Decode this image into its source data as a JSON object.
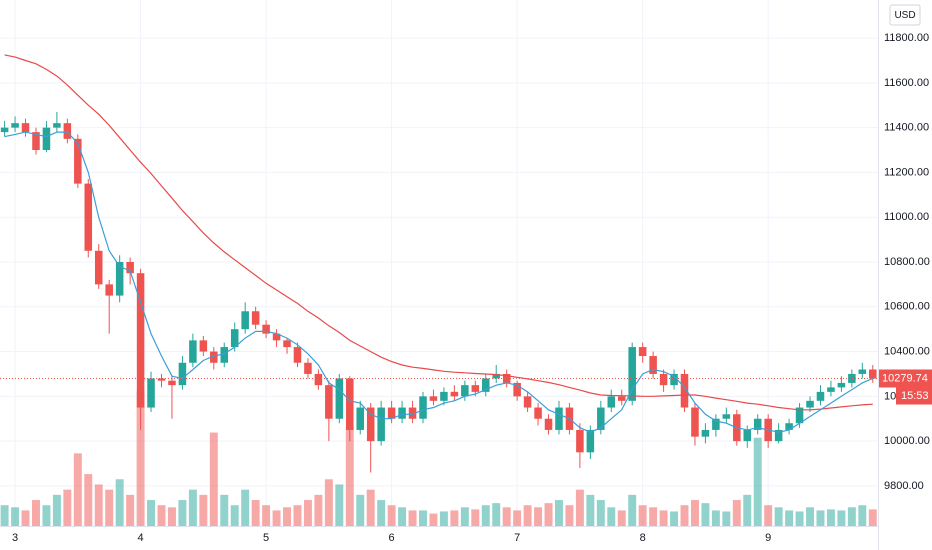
{
  "chart_data": {
    "type": "candlestick",
    "categories": [
      null,
      "3",
      null,
      null,
      null,
      null,
      null,
      null,
      null,
      null,
      null,
      null,
      null,
      "4",
      null,
      null,
      null,
      null,
      null,
      null,
      null,
      null,
      null,
      null,
      null,
      "5",
      null,
      null,
      null,
      null,
      null,
      null,
      null,
      null,
      null,
      null,
      null,
      "6",
      null,
      null,
      null,
      null,
      null,
      null,
      null,
      null,
      null,
      null,
      null,
      "7",
      null,
      null,
      null,
      null,
      null,
      null,
      null,
      null,
      null,
      null,
      null,
      "8",
      null,
      null,
      null,
      null,
      null,
      null,
      null,
      null,
      null,
      null,
      null,
      "9",
      null,
      null,
      null,
      null,
      null,
      null,
      null,
      null,
      null,
      null
    ],
    "open": [
      11380,
      11400,
      11420,
      11380,
      11300,
      11400,
      11420,
      11350,
      11150,
      10850,
      10700,
      10650,
      10800,
      10750,
      10150,
      10280,
      10270,
      10250,
      10350,
      10450,
      10400,
      10350,
      10420,
      10500,
      10580,
      10520,
      10480,
      10450,
      10420,
      10350,
      10300,
      10250,
      10100,
      10280,
      10050,
      10150,
      10000,
      10150,
      10100,
      10150,
      10100,
      10200,
      10180,
      10220,
      10200,
      10250,
      10220,
      10280,
      10300,
      10260,
      10200,
      10150,
      10100,
      10050,
      10150,
      10050,
      9950,
      10050,
      10150,
      10200,
      10180,
      10420,
      10380,
      10300,
      10250,
      10300,
      10150,
      10020,
      10050,
      10100,
      10120,
      10000,
      10050,
      10100,
      10000,
      10050,
      10080,
      10150,
      10180,
      10220,
      10240,
      10260,
      10300,
      10320
    ],
    "high": [
      11430,
      11450,
      11440,
      11400,
      11430,
      11470,
      11440,
      11370,
      11170,
      10880,
      10720,
      10830,
      10820,
      10770,
      10310,
      10300,
      10290,
      10380,
      10480,
      10470,
      10420,
      10440,
      10530,
      10620,
      10600,
      10540,
      10500,
      10460,
      10440,
      10370,
      10320,
      10270,
      10300,
      10290,
      10180,
      10170,
      10180,
      10180,
      10180,
      10180,
      10220,
      10230,
      10240,
      10250,
      10270,
      10270,
      10300,
      10340,
      10320,
      10270,
      10220,
      10170,
      10120,
      10180,
      10170,
      10080,
      10070,
      10180,
      10230,
      10230,
      10440,
      10440,
      10400,
      10320,
      10320,
      10320,
      10170,
      10080,
      10120,
      10150,
      10140,
      10070,
      10120,
      10120,
      10080,
      10100,
      10170,
      10200,
      10250,
      10270,
      10290,
      10320,
      10350,
      10340
    ],
    "low": [
      11360,
      11380,
      11360,
      11280,
      11290,
      11380,
      11330,
      11130,
      10820,
      10680,
      10480,
      10620,
      10700,
      10050,
      10130,
      10240,
      10100,
      10230,
      10330,
      10380,
      10320,
      10330,
      10400,
      10480,
      10500,
      10460,
      10420,
      10390,
      10330,
      10280,
      10230,
      10000,
      10080,
      10000,
      10030,
      9860,
      9980,
      10080,
      10080,
      10080,
      10080,
      10160,
      10160,
      10180,
      10180,
      10200,
      10200,
      10260,
      10240,
      10180,
      10130,
      10070,
      10030,
      10030,
      10030,
      9880,
      9920,
      10030,
      10130,
      10160,
      10160,
      10350,
      10280,
      10220,
      10230,
      10130,
      9980,
      9990,
      10020,
      10080,
      9980,
      9970,
      10030,
      9970,
      9990,
      10030,
      10060,
      10130,
      10160,
      10200,
      10220,
      10240,
      10280,
      10260
    ],
    "close": [
      11400,
      11420,
      11380,
      11300,
      11400,
      11420,
      11350,
      11150,
      10850,
      10700,
      10650,
      10800,
      10750,
      10150,
      10280,
      10270,
      10250,
      10350,
      10450,
      10400,
      10350,
      10420,
      10500,
      10580,
      10520,
      10480,
      10450,
      10420,
      10350,
      10300,
      10250,
      10100,
      10280,
      10050,
      10150,
      10000,
      10150,
      10100,
      10150,
      10100,
      10200,
      10180,
      10220,
      10200,
      10250,
      10220,
      10280,
      10300,
      10260,
      10200,
      10150,
      10100,
      10050,
      10150,
      10050,
      9950,
      10050,
      10150,
      10200,
      10180,
      10420,
      10380,
      10300,
      10250,
      10300,
      10150,
      10020,
      10050,
      10100,
      10120,
      10000,
      10050,
      10100,
      10000,
      10050,
      10080,
      10150,
      10180,
      10220,
      10240,
      10260,
      10300,
      10320,
      10279.74
    ],
    "volume": [
      20,
      18,
      15,
      25,
      20,
      30,
      35,
      70,
      50,
      40,
      35,
      45,
      30,
      130,
      25,
      20,
      18,
      25,
      35,
      30,
      90,
      30,
      20,
      35,
      25,
      20,
      15,
      18,
      20,
      25,
      30,
      45,
      40,
      95,
      30,
      35,
      25,
      20,
      18,
      15,
      15,
      12,
      14,
      15,
      18,
      16,
      20,
      22,
      18,
      15,
      20,
      18,
      22,
      25,
      20,
      35,
      30,
      25,
      18,
      15,
      30,
      20,
      18,
      15,
      14,
      20,
      25,
      22,
      15,
      14,
      25,
      30,
      85,
      20,
      18,
      15,
      14,
      18,
      15,
      16,
      15,
      18,
      20,
      16
    ],
    "ma_fast": {
      "color": "#3a9fd8",
      "values": [
        11360,
        11370,
        11380,
        11370,
        11360,
        11380,
        11380,
        11330,
        11200,
        11000,
        10850,
        10780,
        10760,
        10620,
        10480,
        10380,
        10290,
        10280,
        10320,
        10360,
        10380,
        10390,
        10420,
        10460,
        10490,
        10490,
        10480,
        10460,
        10430,
        10390,
        10340,
        10260,
        10230,
        10180,
        10170,
        10120,
        10100,
        10100,
        10120,
        10120,
        10140,
        10150,
        10170,
        10180,
        10200,
        10210,
        10230,
        10250,
        10260,
        10250,
        10220,
        10180,
        10140,
        10120,
        10100,
        10060,
        10040,
        10060,
        10100,
        10140,
        10230,
        10300,
        10320,
        10310,
        10290,
        10240,
        10170,
        10120,
        10090,
        10080,
        10060,
        10050,
        10060,
        10050,
        10040,
        10050,
        10080,
        10110,
        10140,
        10170,
        10200,
        10230,
        10260,
        10280
      ]
    },
    "ma_slow": {
      "color": "#e84a4a",
      "values": [
        11725,
        11715,
        11700,
        11685,
        11660,
        11630,
        11590,
        11545,
        11500,
        11460,
        11410,
        11355,
        11300,
        11245,
        11195,
        11140,
        11085,
        11030,
        10980,
        10930,
        10885,
        10845,
        10810,
        10775,
        10740,
        10705,
        10675,
        10645,
        10615,
        10580,
        10550,
        10515,
        10485,
        10450,
        10425,
        10400,
        10375,
        10355,
        10340,
        10330,
        10325,
        10318,
        10312,
        10308,
        10305,
        10302,
        10300,
        10297,
        10292,
        10285,
        10278,
        10270,
        10262,
        10252,
        10240,
        10228,
        10215,
        10206,
        10204,
        10203,
        10202,
        10200,
        10200,
        10202,
        10204,
        10206,
        10206,
        10200,
        10192,
        10185,
        10178,
        10170,
        10165,
        10158,
        10150,
        10145,
        10140,
        10140,
        10143,
        10148,
        10153,
        10158,
        10162,
        10165
      ]
    },
    "up_color": "#26a69a",
    "down_color": "#ef5350",
    "ylim": [
      9621,
      11970
    ],
    "yticks": [
      {
        "value": 9800,
        "label": "9800.00"
      },
      {
        "value": 10000,
        "label": "10000.00"
      },
      {
        "value": 10200,
        "label": "10200.00"
      },
      {
        "value": 10400,
        "label": "10400.00"
      },
      {
        "value": 10600,
        "label": "10600.00"
      },
      {
        "value": 10800,
        "label": "10800.00"
      },
      {
        "value": 11000,
        "label": "11000.00"
      },
      {
        "value": 11200,
        "label": "11200.00"
      },
      {
        "value": 11400,
        "label": "11400.00"
      },
      {
        "value": 11600,
        "label": "11600.00"
      },
      {
        "value": 11800,
        "label": "11800.00"
      }
    ],
    "grid": true,
    "currency": "USD",
    "countdown": "15:53"
  }
}
